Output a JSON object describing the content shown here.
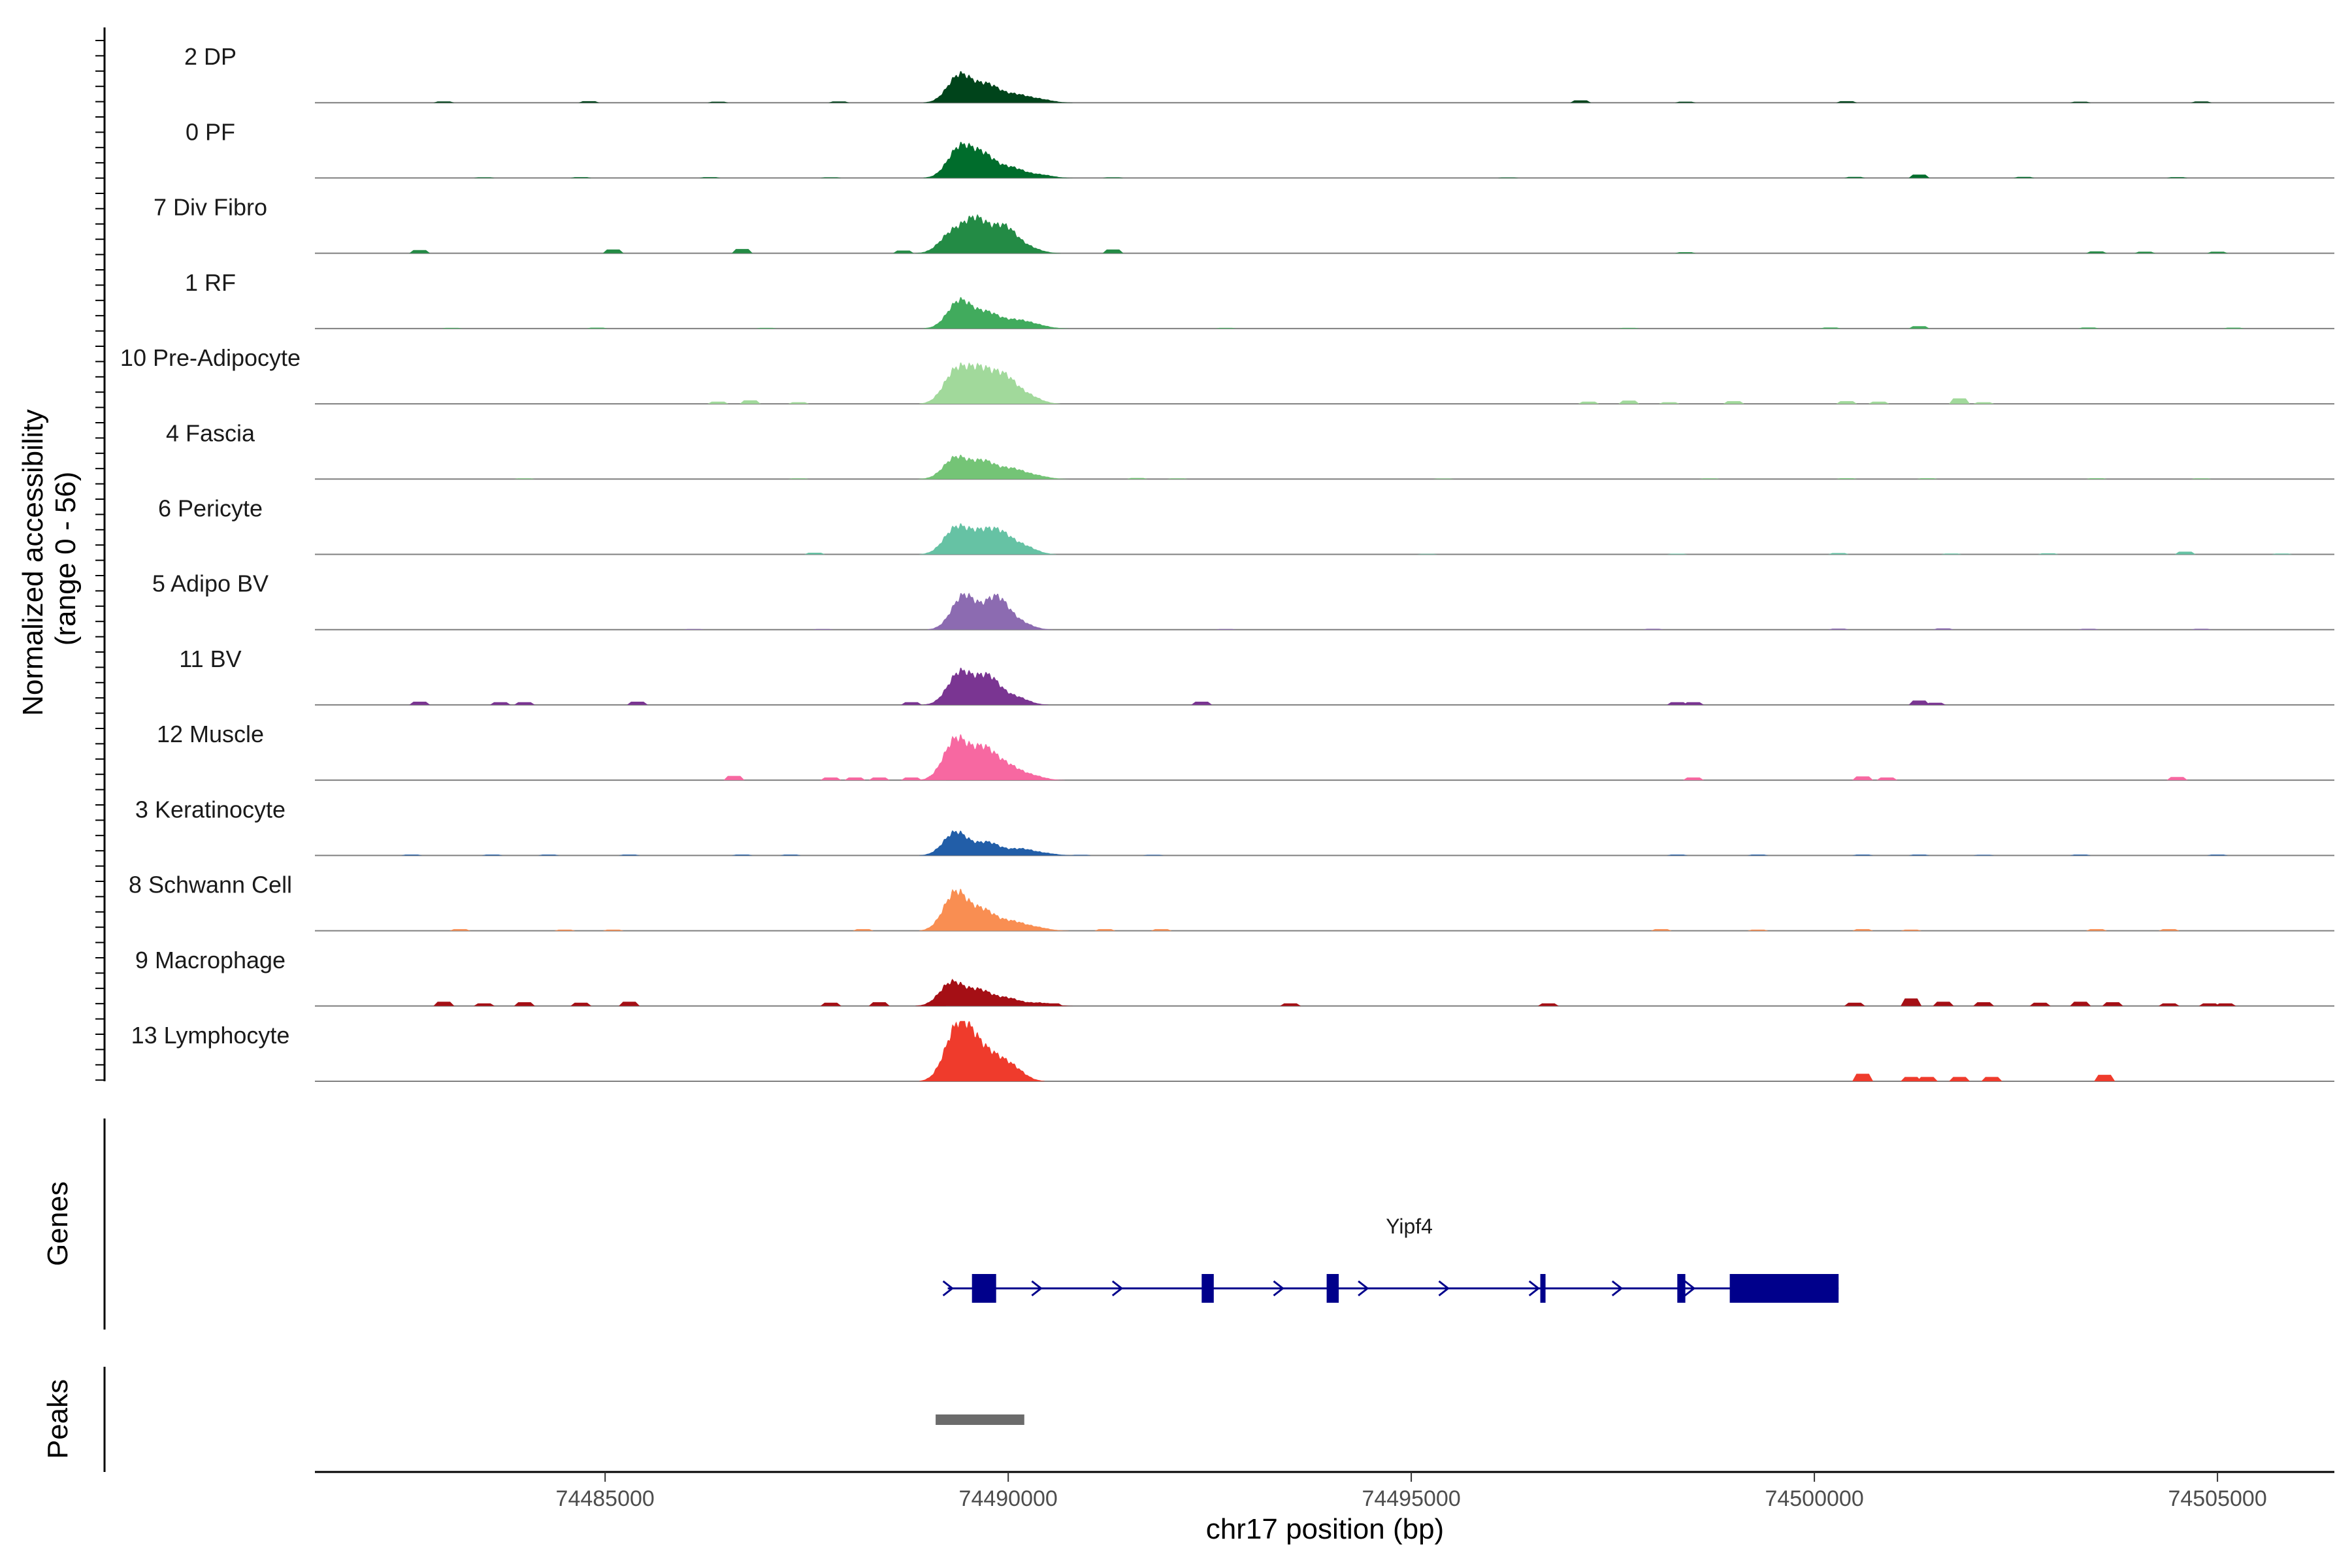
{
  "chart_data": {
    "type": "area",
    "title": "",
    "xlabel": "chr17 position (bp)",
    "ylabel_line1": "Normalized accessibility",
    "ylabel_line2": "(range 0 - 56)",
    "yrange": [
      0,
      56
    ],
    "xlim": [
      74481400,
      74506450
    ],
    "x_ticks": [
      74485000,
      74490000,
      74495000,
      74500000,
      74505000
    ],
    "x_tick_labels": [
      "74485000",
      "74490000",
      "74495000",
      "74500000",
      "74505000"
    ],
    "tracks": [
      {
        "name": "2 DP",
        "color": "#00441b",
        "main": [
          [
            74489400,
            26
          ],
          [
            74489750,
            16
          ],
          [
            74490100,
            7
          ],
          [
            74490400,
            3
          ]
        ],
        "noise": [
          [
            74483000,
            1.2
          ],
          [
            74484800,
            1.4
          ],
          [
            74486400,
            1.0
          ],
          [
            74487900,
            1.2
          ],
          [
            74497100,
            2.2
          ],
          [
            74498400,
            1.0
          ],
          [
            74500400,
            1.4
          ],
          [
            74503300,
            1.0
          ],
          [
            74504800,
            1.2
          ]
        ]
      },
      {
        "name": "0 PF",
        "color": "#006d2c",
        "main": [
          [
            74489400,
            28
          ],
          [
            74489700,
            20
          ],
          [
            74490050,
            9
          ],
          [
            74490400,
            3
          ]
        ],
        "noise": [
          [
            74483500,
            0.6
          ],
          [
            74484700,
            0.8
          ],
          [
            74486300,
            0.8
          ],
          [
            74487800,
            0.6
          ],
          [
            74491300,
            0.6
          ],
          [
            74496200,
            0.5
          ],
          [
            74500500,
            1.0
          ],
          [
            74501300,
            3.2
          ],
          [
            74502600,
            1.0
          ],
          [
            74504500,
            0.8
          ]
        ]
      },
      {
        "name": "7 Div Fibro",
        "color": "#238b45",
        "main": [
          [
            74489300,
            18
          ],
          [
            74489600,
            30
          ],
          [
            74489950,
            24
          ],
          [
            74490250,
            5
          ]
        ],
        "noise": [
          [
            74482700,
            3.0
          ],
          [
            74485100,
            3.5
          ],
          [
            74486700,
            4.0
          ],
          [
            74488700,
            2.5
          ],
          [
            74491300,
            3.5
          ],
          [
            74498400,
            1.0
          ],
          [
            74503500,
            1.8
          ],
          [
            74504100,
            1.4
          ],
          [
            74505000,
            1.4
          ]
        ]
      },
      {
        "name": "1 RF",
        "color": "#41ab5d",
        "main": [
          [
            74489400,
            26
          ],
          [
            74489750,
            14
          ],
          [
            74490100,
            7
          ],
          [
            74490350,
            3
          ]
        ],
        "noise": [
          [
            74483100,
            0.6
          ],
          [
            74484900,
            0.8
          ],
          [
            74487000,
            0.6
          ],
          [
            74492700,
            0.6
          ],
          [
            74497700,
            0.6
          ],
          [
            74500200,
            1.0
          ],
          [
            74501300,
            2.2
          ],
          [
            74503400,
            1.0
          ],
          [
            74505200,
            0.8
          ]
        ]
      },
      {
        "name": "10 Pre-Adipocyte",
        "color": "#a1d99b",
        "main": [
          [
            74489350,
            30
          ],
          [
            74489650,
            28
          ],
          [
            74489950,
            24
          ],
          [
            74490250,
            7
          ]
        ],
        "noise": [
          [
            74486400,
            2.0
          ],
          [
            74486800,
            3.2
          ],
          [
            74487400,
            1.5
          ],
          [
            74497200,
            2.0
          ],
          [
            74497700,
            3.0
          ],
          [
            74498200,
            1.5
          ],
          [
            74499000,
            2.5
          ],
          [
            74500400,
            2.5
          ],
          [
            74500800,
            2.0
          ],
          [
            74501800,
            5.0
          ],
          [
            74502100,
            1.5
          ]
        ]
      },
      {
        "name": "4 Fascia",
        "color": "#74c476",
        "main": [
          [
            74489350,
            20
          ],
          [
            74489700,
            16
          ],
          [
            74490050,
            9
          ],
          [
            74490350,
            3
          ]
        ],
        "noise": [
          [
            74484000,
            0.6
          ],
          [
            74487400,
            0.6
          ],
          [
            74489000,
            0.5
          ],
          [
            74491600,
            1.0
          ],
          [
            74492100,
            0.6
          ],
          [
            74495400,
            0.5
          ],
          [
            74498700,
            0.6
          ],
          [
            74500400,
            0.8
          ],
          [
            74501400,
            0.8
          ],
          [
            74503500,
            0.8
          ],
          [
            74504800,
            0.6
          ]
        ]
      },
      {
        "name": "6 Pericyte",
        "color": "#66c2a4",
        "main": [
          [
            74489350,
            24
          ],
          [
            74489650,
            16
          ],
          [
            74489900,
            18
          ],
          [
            74490200,
            7
          ]
        ],
        "noise": [
          [
            74487600,
            1.5
          ],
          [
            74495200,
            0.5
          ],
          [
            74498300,
            0.6
          ],
          [
            74500300,
            1.2
          ],
          [
            74501700,
            0.8
          ],
          [
            74502900,
            1.0
          ],
          [
            74504600,
            2.5
          ],
          [
            74505800,
            0.8
          ]
        ]
      },
      {
        "name": "5 Adipo BV",
        "color": "#8c6bb1",
        "main": [
          [
            74489450,
            32
          ],
          [
            74489850,
            30
          ],
          [
            74490150,
            6
          ]
        ],
        "noise": [
          [
            74486100,
            0.6
          ],
          [
            74487700,
            0.6
          ],
          [
            74492700,
            0.6
          ],
          [
            74498000,
            0.8
          ],
          [
            74500300,
            1.0
          ],
          [
            74501600,
            1.2
          ],
          [
            74503400,
            0.8
          ],
          [
            74504800,
            0.8
          ]
        ]
      },
      {
        "name": "11 BV",
        "color": "#7a3592",
        "main": [
          [
            74489400,
            30
          ],
          [
            74489750,
            26
          ],
          [
            74490100,
            7
          ]
        ],
        "noise": [
          [
            74482700,
            3.0
          ],
          [
            74483700,
            2.5
          ],
          [
            74484000,
            2.5
          ],
          [
            74485400,
            3.0
          ],
          [
            74488800,
            2.5
          ],
          [
            74492400,
            3.0
          ],
          [
            74498300,
            2.5
          ],
          [
            74498500,
            2.5
          ],
          [
            74501300,
            4.0
          ],
          [
            74501500,
            2.0
          ]
        ]
      },
      {
        "name": "12 Muscle",
        "color": "#f768a1",
        "main": [
          [
            74489350,
            38
          ],
          [
            74489700,
            28
          ],
          [
            74490000,
            12
          ],
          [
            74490300,
            4
          ]
        ],
        "noise": [
          [
            74486600,
            4.0
          ],
          [
            74487800,
            2.5
          ],
          [
            74488100,
            2.5
          ],
          [
            74488400,
            2.5
          ],
          [
            74488800,
            2.5
          ],
          [
            74489100,
            4.0
          ],
          [
            74498500,
            2.5
          ],
          [
            74500600,
            3.5
          ],
          [
            74500900,
            2.5
          ],
          [
            74504500,
            3.0
          ]
        ]
      },
      {
        "name": "3 Keratinocyte",
        "color": "#225ea8",
        "main": [
          [
            74489350,
            22
          ],
          [
            74489750,
            12
          ],
          [
            74490150,
            6
          ],
          [
            74490450,
            2
          ]
        ],
        "noise": [
          [
            74482600,
            0.8
          ],
          [
            74483600,
            0.8
          ],
          [
            74484300,
            0.8
          ],
          [
            74485300,
            0.8
          ],
          [
            74486700,
            0.8
          ],
          [
            74487300,
            0.8
          ],
          [
            74490900,
            0.6
          ],
          [
            74491800,
            0.6
          ],
          [
            74498300,
            0.8
          ],
          [
            74499300,
            0.8
          ],
          [
            74500600,
            0.8
          ],
          [
            74501300,
            0.8
          ],
          [
            74502100,
            0.6
          ],
          [
            74503300,
            0.8
          ],
          [
            74505000,
            0.8
          ]
        ]
      },
      {
        "name": "8 Schwann Cell",
        "color": "#f98e52",
        "main": [
          [
            74489350,
            36
          ],
          [
            74489700,
            18
          ],
          [
            74490050,
            8
          ],
          [
            74490350,
            3
          ]
        ],
        "noise": [
          [
            74483200,
            1.5
          ],
          [
            74484500,
            1.0
          ],
          [
            74485100,
            1.0
          ],
          [
            74488200,
            1.5
          ],
          [
            74491200,
            1.5
          ],
          [
            74491900,
            1.5
          ],
          [
            74498100,
            1.5
          ],
          [
            74499300,
            1.0
          ],
          [
            74500600,
            1.5
          ],
          [
            74501200,
            1.0
          ],
          [
            74503500,
            1.5
          ],
          [
            74504400,
            1.5
          ]
        ]
      },
      {
        "name": "9 Macrophage",
        "color": "#a50f15",
        "main": [
          [
            74489300,
            22
          ],
          [
            74489650,
            14
          ],
          [
            74490000,
            7
          ],
          [
            74490400,
            3
          ]
        ],
        "noise": [
          [
            74483000,
            4.0
          ],
          [
            74483500,
            2.5
          ],
          [
            74484000,
            3.5
          ],
          [
            74484700,
            3.0
          ],
          [
            74485300,
            4.0
          ],
          [
            74487800,
            3.0
          ],
          [
            74488400,
            3.5
          ],
          [
            74489100,
            3.0
          ],
          [
            74490550,
            2.5
          ],
          [
            74493500,
            2.5
          ],
          [
            74496700,
            2.5
          ],
          [
            74500500,
            3.0
          ],
          [
            74501200,
            7.0
          ],
          [
            74501600,
            4.0
          ],
          [
            74502100,
            3.5
          ],
          [
            74502800,
            3.0
          ],
          [
            74503300,
            4.0
          ],
          [
            74503700,
            3.5
          ],
          [
            74504400,
            2.5
          ],
          [
            74504900,
            2.5
          ],
          [
            74505100,
            2.5
          ]
        ]
      },
      {
        "name": "13 Lymphocyte",
        "color": "#ef3b2c",
        "main": [
          [
            74489350,
            42
          ],
          [
            74489550,
            28
          ],
          [
            74489800,
            18
          ],
          [
            74490050,
            12
          ]
        ],
        "noise": [
          [
            74500600,
            7.0
          ],
          [
            74501200,
            4.0
          ],
          [
            74501400,
            4.0
          ],
          [
            74501800,
            4.0
          ],
          [
            74502200,
            4.0
          ],
          [
            74503600,
            6.0
          ]
        ]
      }
    ],
    "genes_label": "Genes",
    "peaks_label": "Peaks",
    "gene": {
      "name": "Yipf4",
      "color": "#00008b",
      "start": 74489250,
      "end": 74500300,
      "strand": "+",
      "exons": [
        [
          74489550,
          74489850
        ],
        [
          74492400,
          74492550
        ],
        [
          74493950,
          74494100
        ],
        [
          74496600,
          74496650
        ],
        [
          74498300,
          74498400
        ],
        [
          74498950,
          74500300
        ]
      ],
      "arrows": [
        74489250,
        74490350,
        74491350,
        74493350,
        74494400,
        74495400,
        74496520,
        74497550,
        74498450
      ]
    },
    "peaks": [
      {
        "start": 74489100,
        "end": 74490200,
        "color": "#6b6b6b"
      }
    ]
  }
}
